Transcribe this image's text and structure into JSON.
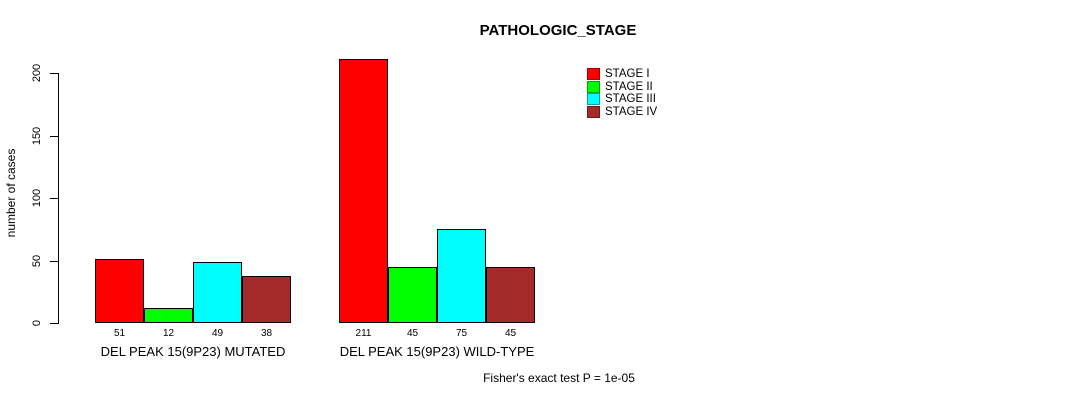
{
  "page": {
    "background": "#ffffff",
    "text_color": "#000000"
  },
  "chart_data": {
    "type": "bar",
    "title": "PATHOLOGIC_STAGE",
    "ylabel": "number of cases",
    "xlabel": "",
    "ylim": [
      0,
      200
    ],
    "yticks": [
      0,
      50,
      100,
      150,
      200
    ],
    "grid": false,
    "legend_position": "top-right",
    "categories": [
      "DEL PEAK 15(9P23) MUTATED",
      "DEL PEAK 15(9P23) WILD-TYPE"
    ],
    "series": [
      {
        "name": "STAGE I",
        "color": "#ff0000",
        "values": [
          51,
          211
        ]
      },
      {
        "name": "STAGE II",
        "color": "#00ff00",
        "values": [
          12,
          45
        ]
      },
      {
        "name": "STAGE III",
        "color": "#00ffff",
        "values": [
          49,
          75
        ]
      },
      {
        "name": "STAGE IV",
        "color": "#a52a2a",
        "values": [
          38,
          45
        ]
      }
    ],
    "bar_value_labels_shown": true,
    "footnote": "Fisher's exact test P = 1e-05"
  }
}
